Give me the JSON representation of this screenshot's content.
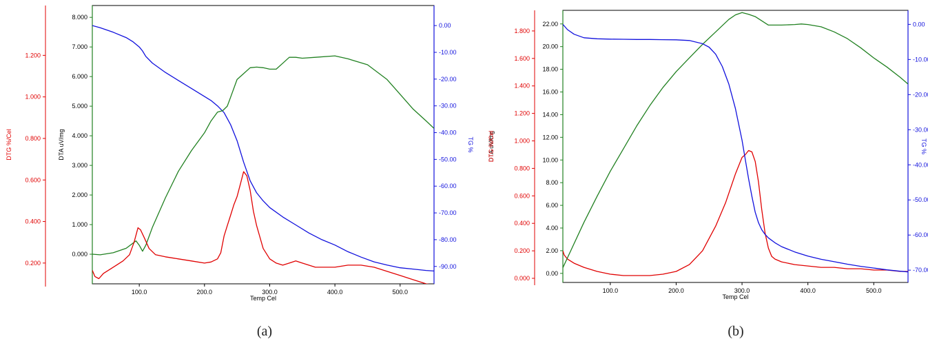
{
  "colors": {
    "dtg": "#e00000",
    "dta": "#208020",
    "tg": "#1010dd",
    "frame": "#000000",
    "text": "#000000"
  },
  "chart_data": [
    {
      "type": "line",
      "caption": "(a)",
      "xlabel": "Temp Cel",
      "xlim": [
        28,
        552
      ],
      "x_ticks": [
        "100.0",
        "200.0",
        "300.0",
        "400.0",
        "500.0"
      ],
      "axes": {
        "dtg": {
          "label": "DTG %/Cel",
          "ylim": [
            0.1,
            1.44
          ],
          "ticks": [
            "0.200",
            "0.400",
            "0.600",
            "0.800",
            "1.000",
            "1.200"
          ]
        },
        "dta": {
          "label": "DTA uV/mg",
          "ylim": [
            -1.0,
            8.4
          ],
          "ticks": [
            "0.000",
            "1.000",
            "2.000",
            "3.000",
            "4.000",
            "5.000",
            "6.000",
            "7.000",
            "8.000"
          ]
        },
        "tg": {
          "label": "TG %",
          "ylim": [
            -96.5,
            7.5
          ],
          "ticks": [
            "0.00",
            "-10.00",
            "-20.00",
            "-30.00",
            "-40.00",
            "-50.00",
            "-60.00",
            "-70.00",
            "-80.00",
            "-90.00"
          ]
        }
      },
      "series": [
        {
          "key": "tg",
          "x": [
            28,
            40,
            60,
            80,
            90,
            100,
            105,
            110,
            120,
            140,
            160,
            180,
            200,
            210,
            220,
            230,
            240,
            250,
            260,
            270,
            280,
            290,
            300,
            320,
            340,
            360,
            380,
            400,
            420,
            440,
            460,
            480,
            500,
            520,
            540,
            552
          ],
          "y": [
            0,
            -0.8,
            -2.5,
            -4.5,
            -6,
            -8,
            -9.5,
            -11.5,
            -14,
            -17.5,
            -20.5,
            -23.5,
            -26.5,
            -28,
            -30,
            -32.5,
            -37,
            -43,
            -51,
            -58,
            -62.5,
            -65.5,
            -68,
            -71.5,
            -74.5,
            -77.5,
            -80,
            -82,
            -84.5,
            -86.5,
            -88.3,
            -89.5,
            -90.5,
            -91,
            -91.5,
            -91.7
          ]
        },
        {
          "key": "dta",
          "x": [
            28,
            40,
            60,
            80,
            95,
            100,
            105,
            110,
            120,
            140,
            160,
            180,
            200,
            210,
            220,
            228,
            235,
            240,
            250,
            260,
            270,
            280,
            290,
            300,
            310,
            320,
            330,
            340,
            350,
            370,
            400,
            420,
            450,
            480,
            500,
            520,
            540,
            552
          ],
          "y": [
            0,
            -0.02,
            0.05,
            0.2,
            0.45,
            0.3,
            0.1,
            0.3,
            0.9,
            1.9,
            2.8,
            3.5,
            4.1,
            4.5,
            4.8,
            4.85,
            5.0,
            5.3,
            5.9,
            6.1,
            6.3,
            6.32,
            6.3,
            6.25,
            6.25,
            6.45,
            6.65,
            6.65,
            6.62,
            6.65,
            6.7,
            6.6,
            6.4,
            5.9,
            5.4,
            4.9,
            4.5,
            4.25
          ]
        },
        {
          "key": "dtg",
          "x": [
            28,
            32,
            38,
            45,
            55,
            65,
            75,
            85,
            92,
            98,
            102,
            108,
            115,
            125,
            140,
            160,
            180,
            200,
            210,
            220,
            225,
            230,
            235,
            240,
            245,
            250,
            255,
            260,
            265,
            270,
            275,
            280,
            290,
            300,
            310,
            320,
            330,
            340,
            350,
            370,
            400,
            420,
            440,
            460,
            480,
            500,
            520,
            540,
            552
          ],
          "y": [
            0.165,
            0.135,
            0.125,
            0.15,
            0.17,
            0.19,
            0.21,
            0.24,
            0.3,
            0.37,
            0.36,
            0.32,
            0.27,
            0.24,
            0.23,
            0.22,
            0.21,
            0.2,
            0.205,
            0.22,
            0.25,
            0.33,
            0.38,
            0.43,
            0.48,
            0.52,
            0.58,
            0.64,
            0.62,
            0.55,
            0.45,
            0.38,
            0.27,
            0.22,
            0.2,
            0.19,
            0.2,
            0.21,
            0.2,
            0.18,
            0.18,
            0.19,
            0.19,
            0.18,
            0.16,
            0.14,
            0.12,
            0.1,
            0.095
          ]
        }
      ]
    },
    {
      "type": "line",
      "caption": "(b)",
      "xlabel": "Temp Cel",
      "xlim": [
        28,
        552
      ],
      "x_ticks": [
        "100.0",
        "200.0",
        "300.0",
        "400.0",
        "500.0"
      ],
      "axes": {
        "dtg": {
          "label": "DTG %/Cel",
          "ylim": [
            -0.03,
            1.95
          ],
          "ticks": [
            "0.000",
            "0.200",
            "0.400",
            "0.600",
            "0.800",
            "1.000",
            "1.200",
            "1.400",
            "1.600",
            "1.800"
          ]
        },
        "dta": {
          "label": "DTA uV/mg",
          "ylim": [
            -0.8,
            23.2
          ],
          "ticks": [
            "0.00",
            "2.00",
            "4.00",
            "6.00",
            "8.00",
            "10.00",
            "12.00",
            "14.00",
            "16.00",
            "18.00",
            "20.00",
            "22.00"
          ]
        },
        "tg": {
          "label": "TG %",
          "ylim": [
            -73.5,
            4
          ],
          "ticks": [
            "0.00",
            "-10.00",
            "-20.00",
            "-30.00",
            "-40.00",
            "-50.00",
            "-60.00",
            "-70.00"
          ]
        }
      },
      "series": [
        {
          "key": "dtg",
          "x": [
            28,
            30,
            35,
            45,
            60,
            80,
            100,
            120,
            140,
            160,
            180,
            200,
            220,
            240,
            260,
            275,
            290,
            300,
            305,
            310,
            315,
            320,
            325,
            330,
            335,
            340,
            345,
            350,
            360,
            380,
            400,
            420,
            440,
            460,
            480,
            500,
            520,
            540,
            552
          ],
          "y": [
            0.2,
            0.17,
            0.14,
            0.11,
            0.08,
            0.05,
            0.03,
            0.02,
            0.02,
            0.02,
            0.03,
            0.05,
            0.1,
            0.2,
            0.38,
            0.55,
            0.76,
            0.88,
            0.9,
            0.93,
            0.92,
            0.85,
            0.7,
            0.5,
            0.33,
            0.22,
            0.16,
            0.14,
            0.12,
            0.1,
            0.09,
            0.08,
            0.08,
            0.07,
            0.07,
            0.06,
            0.06,
            0.05,
            0.05
          ]
        },
        {
          "key": "dta",
          "x": [
            28,
            40,
            60,
            80,
            100,
            120,
            140,
            160,
            180,
            200,
            220,
            240,
            260,
            280,
            290,
            300,
            310,
            320,
            340,
            360,
            380,
            390,
            400,
            420,
            440,
            460,
            480,
            500,
            520,
            540,
            552
          ],
          "y": [
            0.5,
            2.0,
            4.5,
            6.8,
            9.0,
            11.0,
            13.0,
            14.8,
            16.4,
            17.8,
            19.0,
            20.2,
            21.3,
            22.4,
            22.8,
            23.0,
            22.85,
            22.65,
            21.9,
            21.9,
            21.95,
            22.0,
            21.95,
            21.75,
            21.3,
            20.7,
            19.9,
            19.0,
            18.2,
            17.3,
            16.7
          ]
        },
        {
          "key": "tg",
          "x": [
            28,
            35,
            45,
            60,
            80,
            100,
            120,
            140,
            160,
            180,
            200,
            220,
            240,
            250,
            260,
            270,
            280,
            290,
            300,
            305,
            310,
            315,
            320,
            325,
            330,
            335,
            340,
            350,
            360,
            380,
            400,
            420,
            440,
            460,
            480,
            500,
            520,
            540,
            552
          ],
          "y": [
            0,
            -1.5,
            -2.8,
            -3.8,
            -4.1,
            -4.2,
            -4.25,
            -4.3,
            -4.3,
            -4.35,
            -4.4,
            -4.6,
            -5.5,
            -6.5,
            -8.5,
            -12,
            -17,
            -24,
            -33,
            -38.5,
            -44,
            -49,
            -53.5,
            -56.5,
            -58.5,
            -59.8,
            -60.8,
            -62.2,
            -63.3,
            -64.8,
            -66,
            -66.9,
            -67.6,
            -68.3,
            -68.9,
            -69.4,
            -69.9,
            -70.3,
            -70.5
          ]
        }
      ]
    }
  ]
}
